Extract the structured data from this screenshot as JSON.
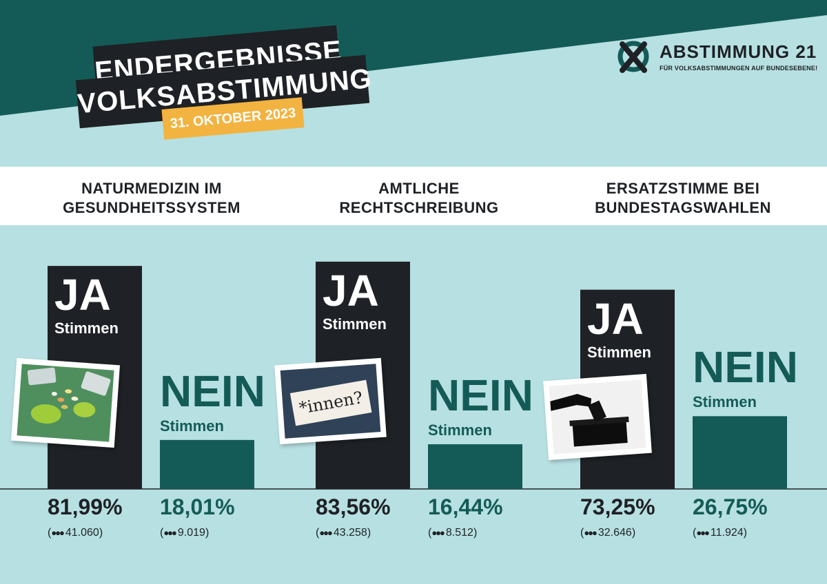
{
  "header": {
    "title_line1": "ENDERGEBNISSE",
    "title_line2": "VOLKSABSTIMMUNG",
    "date": "31. OKTOBER 2023"
  },
  "logo": {
    "name": "ABSTIMMUNG 21",
    "tagline": "FÜR VOLKSABSTIMMUNGEN AUF BUNDESEBENE!",
    "icon": "ballot-x-icon"
  },
  "labels": {
    "yes": "JA",
    "no": "NEIN",
    "votes": "Stimmen"
  },
  "colors": {
    "background": "#b7e0e2",
    "yes_bar": "#1e2125",
    "no_bar": "#145b57",
    "dark_band": "#145b57",
    "date_badge": "#f3b340"
  },
  "chart_data": {
    "type": "bar",
    "categories": [
      "NATURMEDIZIN IM GESUNDHEITSSYSTEM",
      "AMTLICHE RECHTSCHREIBUNG",
      "ERSATZSTIMME BEI BUNDESTAGSWAHLEN"
    ],
    "category_lines": [
      [
        "NATURMEDIZIN IM",
        "GESUNDHEITSSYSTEM"
      ],
      [
        "AMTLICHE",
        "RECHTSCHREIBUNG"
      ],
      [
        "ERSATZSTIMME BEI",
        "BUNDESTAGSWAHLEN"
      ]
    ],
    "series": [
      {
        "name": "JA",
        "values": [
          81.99,
          83.56,
          73.25
        ],
        "labels": [
          "81,99%",
          "83,56%",
          "73,25%"
        ],
        "counts": [
          "41.060",
          "43.258",
          "32.646"
        ]
      },
      {
        "name": "NEIN",
        "values": [
          18.01,
          16.44,
          26.75
        ],
        "labels": [
          "18,01%",
          "16,44%",
          "26,75%"
        ],
        "counts": [
          "9.019",
          "8.512",
          "11.924"
        ]
      }
    ],
    "photos": [
      {
        "name": "pills-photo",
        "text": ""
      },
      {
        "name": "innen-photo",
        "text": "*innen?"
      },
      {
        "name": "ballot-box-photo",
        "text": ""
      }
    ],
    "ylim": [
      0,
      100
    ]
  }
}
